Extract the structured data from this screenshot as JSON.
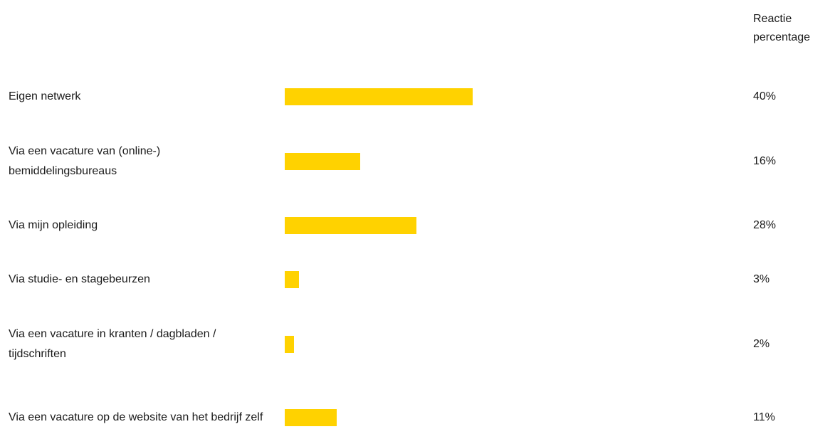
{
  "chart_data": {
    "type": "bar",
    "orientation": "horizontal",
    "value_header": [
      "Reactie",
      "percentage"
    ],
    "categories": [
      "Eigen netwerk",
      "Via een vacature van (online-) bemiddelingsbureaus",
      "Via mijn opleiding",
      "Via studie- en stagebeurzen",
      "Via een vacature in kranten / dagbladen / tijdschriften",
      "Via een vacature op de website van het bedrijf zelf"
    ],
    "values": [
      40,
      16,
      28,
      3,
      2,
      11
    ],
    "value_labels": [
      "40%",
      "16%",
      "28%",
      "3%",
      "2%",
      "11%"
    ],
    "bar_color": "#FFD200",
    "grid": false,
    "legend": "none"
  }
}
